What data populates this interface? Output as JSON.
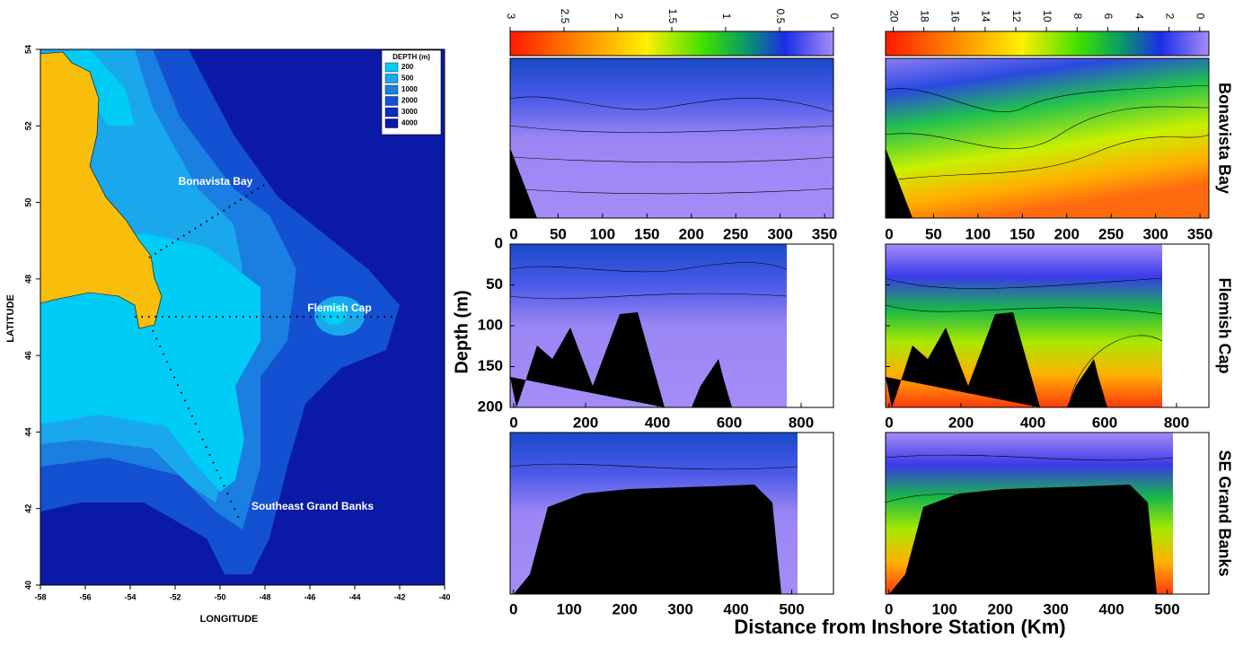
{
  "map": {
    "xlabel": "LONGITUDE",
    "ylabel": "LATITUDE",
    "xlim": [
      -58,
      -40
    ],
    "ylim": [
      40,
      54
    ],
    "xticks": [
      -58,
      -56,
      -54,
      -52,
      -50,
      -48,
      -46,
      -44,
      -42,
      -40
    ],
    "yticks": [
      40,
      42,
      44,
      46,
      48,
      50,
      52,
      54
    ],
    "legend_title": "DEPTH (m)",
    "legend": [
      {
        "label": 200,
        "color": "#00ccf5"
      },
      {
        "label": 500,
        "color": "#1aa8ec"
      },
      {
        "label": 1000,
        "color": "#1a7fe0"
      },
      {
        "label": 2000,
        "color": "#1450d2"
      },
      {
        "label": 3000,
        "color": "#0a2ec0"
      },
      {
        "label": 4000,
        "color": "#0a1aa6"
      }
    ],
    "places": [
      "Bonavista Bay",
      "Flemish Cap",
      "Southeast Grand Banks"
    ]
  },
  "colorbars": [
    {
      "lim": [
        3,
        0
      ],
      "ticks": [
        3,
        2.5,
        2,
        1.5,
        1,
        0.5,
        0
      ]
    },
    {
      "lim": [
        20.5,
        -0.6
      ],
      "ticks": [
        20,
        18,
        16,
        14,
        12,
        10,
        8,
        6,
        4,
        2,
        0
      ]
    }
  ],
  "rows": [
    {
      "name": "Bonavista Bay",
      "xlim": [
        -4,
        360
      ],
      "xticks": [
        0,
        50,
        100,
        150,
        200,
        250,
        300,
        350
      ]
    },
    {
      "name": "Flemish Cap",
      "xlim": [
        -10,
        890
      ],
      "xticks": [
        0,
        200,
        400,
        600,
        800
      ],
      "ylim": [
        0,
        200
      ],
      "yticks": [
        0,
        50,
        100,
        150,
        200
      ]
    },
    {
      "name": "SE Grand Banks",
      "xlim": [
        -6,
        575
      ],
      "xticks": [
        0,
        100,
        200,
        300,
        400,
        500
      ]
    }
  ],
  "ylabel": "Depth (m)",
  "xlabel": "Distance from Inshore Station (Km)"
}
